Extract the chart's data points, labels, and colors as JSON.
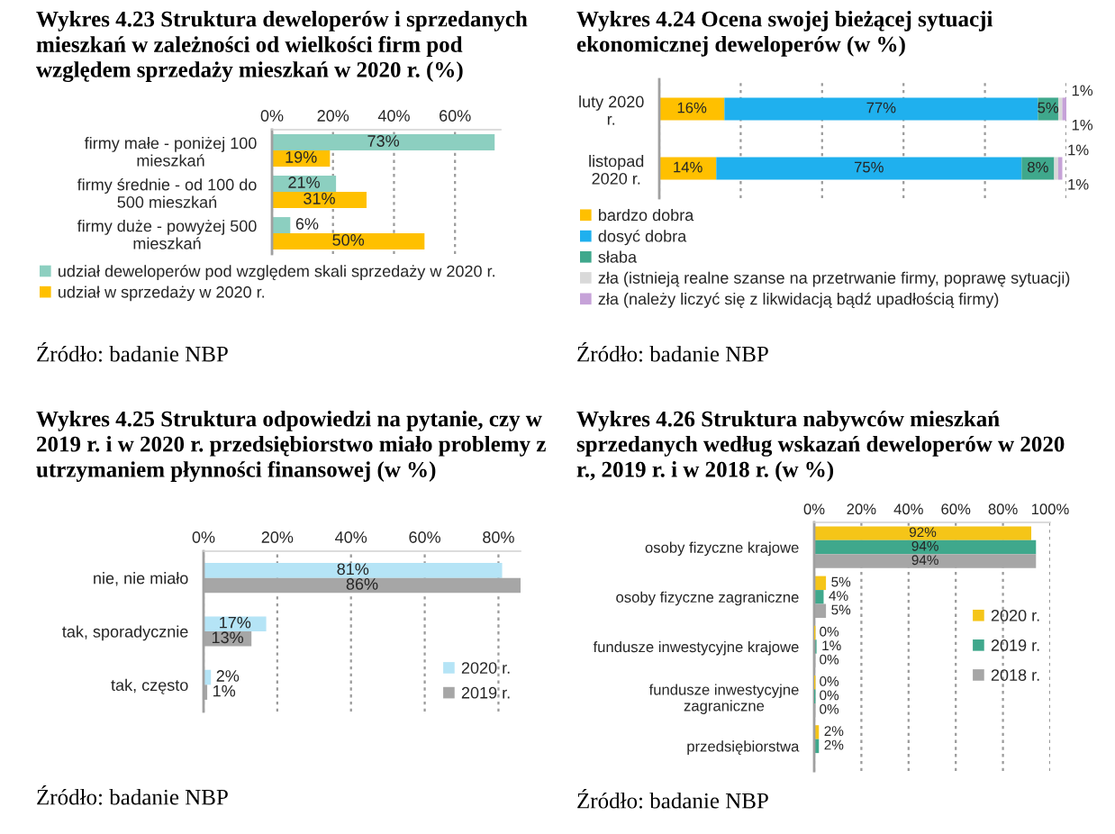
{
  "chart_data": [
    {
      "type": "bar",
      "orientation": "horizontal",
      "title": "Wykres 4.23 Struktura deweloperów i sprzedanych mieszkań w zależności od wielkości firm pod względem sprzedaży mieszkań w 2020 r. (%)",
      "categories": [
        "firmy małe - poniżej 100 mieszkań",
        "firmy średnie - od 100 do 500 mieszkań",
        "firmy duże - powyżej 500 mieszkań"
      ],
      "series": [
        {
          "name": "udział deweloperów pod względem skali sprzedaży w 2020 r.",
          "color": "#8ccfc0",
          "values": [
            73,
            21,
            6
          ],
          "value_labels": [
            "73%",
            "21%",
            "6%"
          ]
        },
        {
          "name": "udział w sprzedaży w 2020 r.",
          "color": "#ffc000",
          "values": [
            19,
            31,
            50
          ],
          "value_labels": [
            "19%",
            "31%",
            "50%"
          ]
        }
      ],
      "xlim": [
        0,
        75
      ],
      "xticks": [
        {
          "value": 0,
          "label": "0%"
        },
        {
          "value": 20,
          "label": "20%"
        },
        {
          "value": 40,
          "label": "40%"
        },
        {
          "value": 60,
          "label": "60%"
        }
      ],
      "grid": "x",
      "legend": "bottom",
      "annotations": [
        "Źródło: badanie NBP"
      ]
    },
    {
      "type": "bar",
      "orientation": "horizontal",
      "stacked": true,
      "title": "Wykres 4.24 Ocena swojej bieżącej sytuacji ekonomicznej deweloperów (w %)",
      "categories": [
        "luty 2020 r.",
        "listopad 2020 r."
      ],
      "series": [
        {
          "name": "bardzo dobra",
          "color": "#ffc000",
          "values": [
            16,
            14
          ],
          "value_labels": [
            "16%",
            "14%"
          ]
        },
        {
          "name": "dosyć dobra",
          "color": "#1fb0ee",
          "values": [
            77,
            75
          ],
          "value_labels": [
            "77%",
            "75%"
          ]
        },
        {
          "name": "słaba",
          "color": "#3fa88c",
          "values": [
            5,
            8
          ],
          "value_labels": [
            "5%",
            "8%"
          ]
        },
        {
          "name": "zła (istnieją realne szanse na przetrwanie firmy, poprawę sytuacji)",
          "color": "#d9d9d9",
          "values": [
            1,
            1
          ],
          "value_labels": [
            "1%",
            "1%"
          ]
        },
        {
          "name": "zła (należy liczyć się z likwidacją bądź upadłością firmy)",
          "color": "#c6a2d8",
          "values": [
            1,
            1
          ],
          "value_labels": [
            "1%",
            "1%"
          ]
        }
      ],
      "tick_labels": "y",
      "grid": "x",
      "legend": "bottom",
      "annotations": [
        "Źródło: badanie NBP"
      ]
    },
    {
      "type": "bar",
      "orientation": "horizontal",
      "title": "Wykres 4.25 Struktura odpowiedzi na pytanie, czy w 2019 r. i w 2020 r. przedsiębiorstwo miało problemy z utrzymaniem płynności finansowej (w %)",
      "categories": [
        "nie, nie miało",
        "tak, sporadycznie",
        "tak, często"
      ],
      "series": [
        {
          "name": "2020 r.",
          "color": "#b5e4f6",
          "values": [
            81,
            17,
            2
          ],
          "value_labels": [
            "81%",
            "17%",
            "2%"
          ]
        },
        {
          "name": "2019 r.",
          "color": "#a6a6a6",
          "values": [
            86,
            13,
            1
          ],
          "value_labels": [
            "86%",
            "13%",
            "1%"
          ]
        }
      ],
      "xlim": [
        0,
        86
      ],
      "xticks": [
        {
          "value": 0,
          "label": "0%"
        },
        {
          "value": 20,
          "label": "20%"
        },
        {
          "value": 40,
          "label": "40%"
        },
        {
          "value": 60,
          "label": "60%"
        },
        {
          "value": 80,
          "label": "80%"
        }
      ],
      "grid": "x",
      "legend": "bottom right",
      "annotations": [
        "Źródło: badanie NBP"
      ]
    },
    {
      "type": "bar",
      "orientation": "horizontal",
      "title": "Wykres 4.26 Struktura nabywców mieszkań sprzedanych według wskazań deweloperów w 2020 r., 2019 r. i w 2018 r. (w %)",
      "categories": [
        "osoby fizyczne krajowe",
        "osoby fizyczne zagraniczne",
        "fundusze inwestycyjne krajowe",
        "fundusze inwestycyjne zagraniczne",
        "przedsiębiorstwa"
      ],
      "series": [
        {
          "name": "2020 r.",
          "color": "#f5c518",
          "values": [
            92,
            5,
            0,
            0,
            2
          ],
          "value_labels": [
            "92%",
            "5%",
            "0%",
            "0%",
            "2%"
          ]
        },
        {
          "name": "2019 r.",
          "color": "#3fa88c",
          "values": [
            94,
            4,
            1,
            0,
            2
          ],
          "value_labels": [
            "94%",
            "4%",
            "1%",
            "0%",
            "2%"
          ]
        },
        {
          "name": "2018 r.",
          "color": "#a6a6a6",
          "values": [
            94,
            5,
            0,
            0,
            null
          ],
          "value_labels": [
            "94%",
            "5%",
            "0%",
            "0%",
            null
          ]
        }
      ],
      "xlim": [
        0,
        100
      ],
      "xticks": [
        {
          "value": 0,
          "label": "0%"
        },
        {
          "value": 20,
          "label": "20%"
        },
        {
          "value": 40,
          "label": "40%"
        },
        {
          "value": 60,
          "label": "60%"
        },
        {
          "value": 80,
          "label": "80%"
        },
        {
          "value": 100,
          "label": "100%"
        }
      ],
      "grid": "x",
      "legend": "right",
      "annotations": [
        "Źródło: badanie NBP"
      ]
    }
  ]
}
